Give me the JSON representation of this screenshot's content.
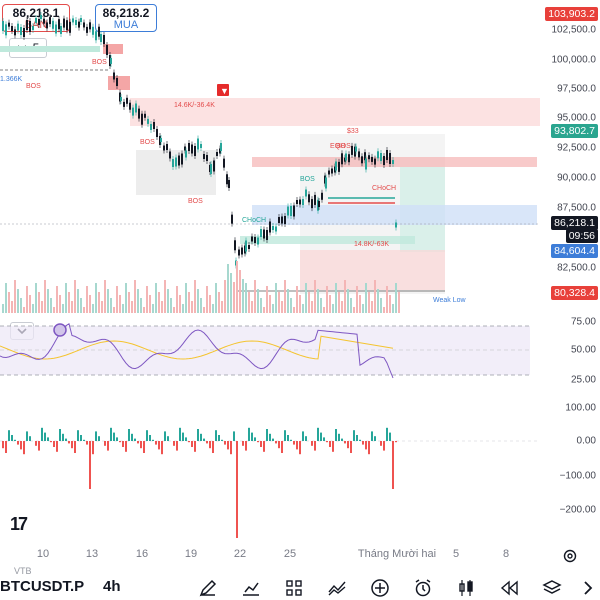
{
  "trade": {
    "sell_price": "86,218.1",
    "sell_label": "BÁN",
    "buy_price": "86,218.2",
    "buy_label": "MUA",
    "quantity": "5"
  },
  "price_axis": {
    "ticks": [
      "102,500.0",
      "100,000.0",
      "97,500.0",
      "95,000.0",
      "92,500.0",
      "90,000.0",
      "87,500.0",
      "82,500.0"
    ],
    "tag_top": "103,903.2",
    "tag_green": "93,802.7",
    "tag_current": "86,218.1",
    "tag_countdown": "09:56",
    "tag_blue": "84,604.4",
    "tag_red": "80,328.4"
  },
  "rsi_axis": {
    "ticks": [
      "75.00",
      "50.00",
      "25.00"
    ]
  },
  "hist_axis": {
    "ticks": [
      "100.00",
      "0.00",
      "−100.00",
      "−200.00"
    ]
  },
  "time_axis": {
    "labels": [
      "10",
      "13",
      "16",
      "19",
      "22",
      "25",
      "Tháng Mười hai",
      "5",
      "8"
    ]
  },
  "chart_labels": {
    "bos": "BOS",
    "eqh": "EQH",
    "choch": "CHoCH",
    "range1": "14.6K/-36.4K",
    "range2": "14.8K/-63K",
    "s33": "$33",
    "weak_low": "Weak Low",
    "left_level": "1.366K"
  },
  "footer": {
    "symbol": "BTCUSDT.P",
    "timeframe": "4h",
    "exchange": "VTB",
    "logo": "17"
  },
  "colors": {
    "up": "#26a69a",
    "down": "#ef5350",
    "red_tag": "#e8403a",
    "green_tag": "#2aa58f",
    "blue_tag": "#3d7dd8",
    "rsi": "#7e57c2",
    "rsi_ma": "#f4c430"
  }
}
